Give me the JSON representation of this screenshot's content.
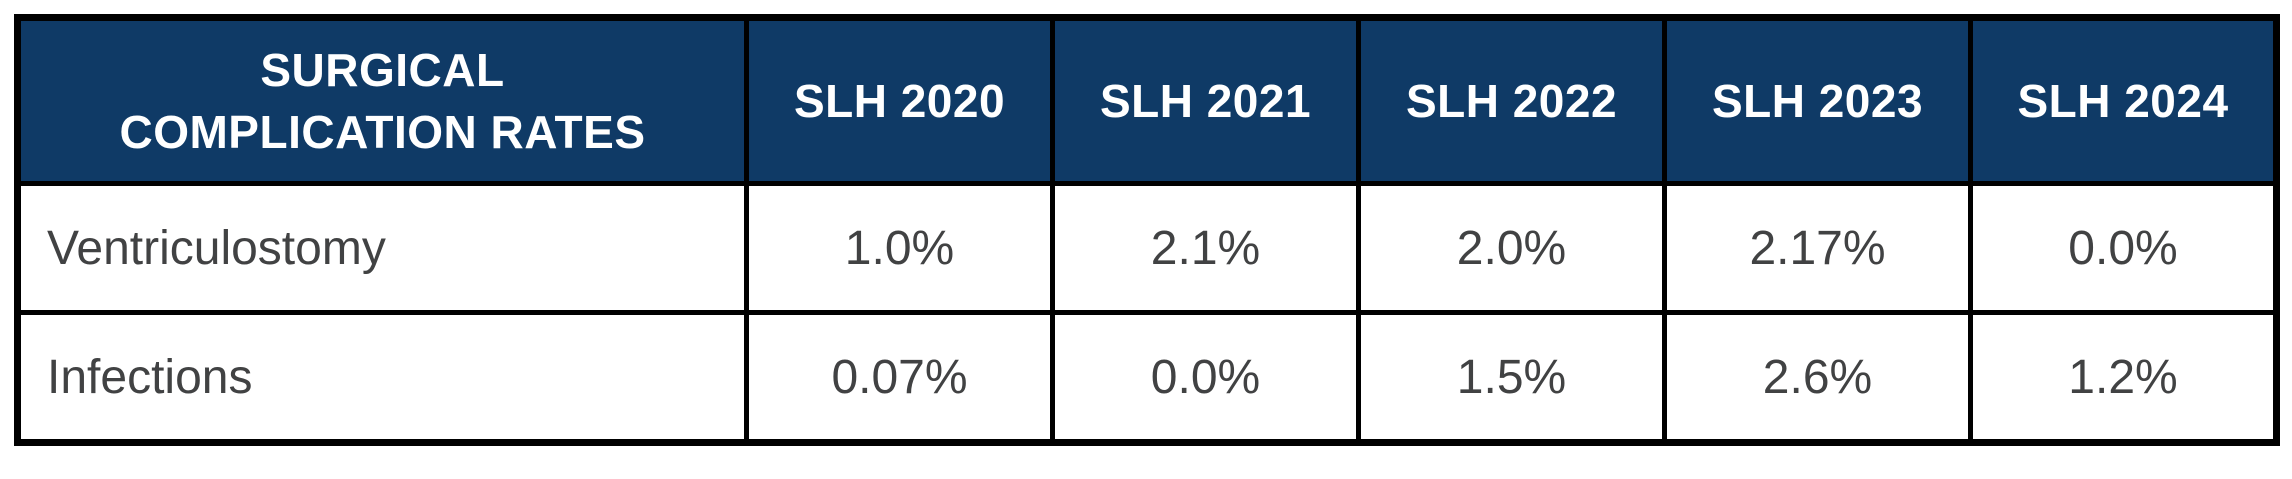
{
  "chart_data": {
    "type": "table",
    "title": "SURGICAL COMPLICATION RATES",
    "categories": [
      "SLH 2020",
      "SLH 2021",
      "SLH 2022",
      "SLH 2023",
      "SLH 2024"
    ],
    "series": [
      {
        "name": "Ventriculostomy",
        "values": [
          1.0,
          2.1,
          2.0,
          2.17,
          0.0
        ],
        "labels": [
          "1.0%",
          "2.1%",
          "2.0%",
          "2.17%",
          "0.0%"
        ]
      },
      {
        "name": "Infections",
        "values": [
          0.07,
          0.0,
          1.5,
          2.6,
          1.2
        ],
        "labels": [
          "0.07%",
          "0.0%",
          "1.5%",
          "2.6%",
          "1.2%"
        ]
      }
    ],
    "unit": "%",
    "layout": "first column row labels, header row of years, grid on"
  },
  "table_ui": {
    "corner_title_lines": [
      "SURGICAL",
      "COMPLICATION RATES"
    ]
  },
  "colors": {
    "header_bg": "#0F3A66",
    "header_text": "#FFFFFF",
    "body_text": "#414243",
    "border": "#000000",
    "page_bg": "#FFFFFF"
  }
}
